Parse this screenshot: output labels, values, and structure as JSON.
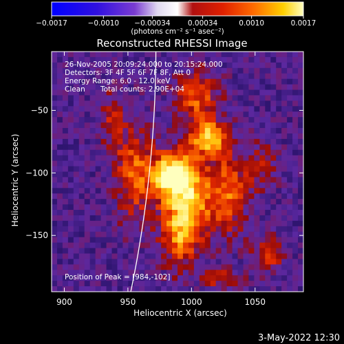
{
  "colorbar": {
    "tick_labels": [
      "−0.0017",
      "−0.0010",
      "−0.00034",
      "0.00034",
      "0.0010",
      "0.0017"
    ],
    "tick_values": [
      -0.0017,
      -0.001,
      -0.00034,
      0.00034,
      0.001,
      0.0017
    ],
    "range": [
      -0.0017,
      0.0017
    ],
    "units_label": "(photons cm⁻² s⁻¹ asec⁻²)",
    "colors": {
      "low": "#0000ff",
      "mid_low": "#6a2bd8",
      "zero": "#ffffff",
      "mid": "#ff3300",
      "high": "#ffffb0"
    }
  },
  "chart_data": {
    "type": "heatmap",
    "title": "Reconstructed RHESSI Image",
    "xlabel": "Heliocentric X (arcsec)",
    "ylabel": "Heliocentric Y (arcsec)",
    "xlim": [
      890,
      1088
    ],
    "ylim": [
      -195,
      -3
    ],
    "x_tick_labels": [
      "900",
      "950",
      "1000",
      "1050"
    ],
    "x_ticks": [
      900,
      950,
      1000,
      1050
    ],
    "y_tick_labels": [
      "−50",
      "−100",
      "−150"
    ],
    "y_ticks": [
      -50,
      -100,
      -150
    ],
    "annotations": [
      "26-Nov-2005 20:09:24.000 to 20:15:24.000",
      "Detectors: 3F 4F 5F 6F 7F 8F, Att 0",
      "Energy Range: 6.0 - 12.0 keV",
      "Clean",
      "Total counts: 2.90E+04"
    ],
    "peak_label": "Position of Peak = [984,-102]",
    "peak": [
      984,
      -102
    ],
    "limb_color": "#ffffff"
  },
  "footer": {
    "date": "3-May-2022 12:30"
  }
}
